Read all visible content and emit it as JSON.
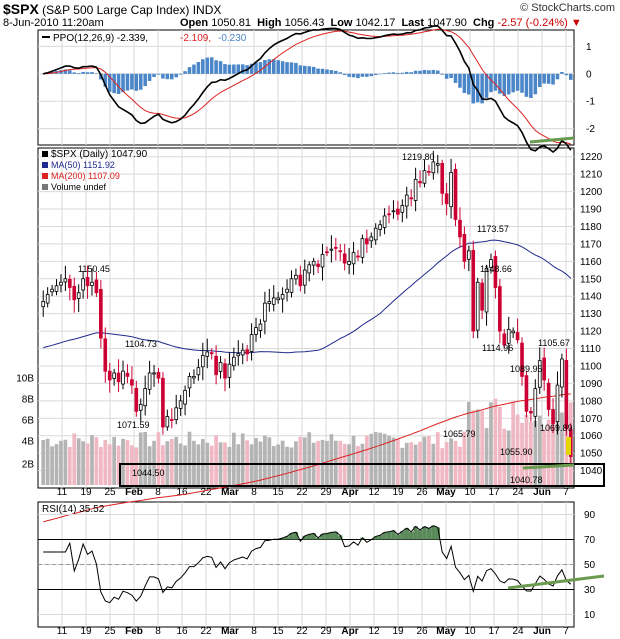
{
  "header": {
    "symbol": "$SPX",
    "name": "(S&P 500 Large Cap Index)",
    "exchange": "INDX",
    "credit": "© StockCharts.com",
    "datetime": "8-Jun-2010 11:20am",
    "open_label": "Open",
    "open": "1050.81",
    "high_label": "High",
    "high": "1056.43",
    "low_label": "Low",
    "low": "1042.17",
    "last_label": "Last",
    "last": "1047.90",
    "chg_label": "Chg",
    "chg": "-2.57 (-0.24%)",
    "chg_arrow": "▼"
  },
  "colors": {
    "up": "#000000",
    "down": "#cc0033",
    "ma50": "#1f2a8c",
    "ma200": "#dd2222",
    "ppo_hist": "#4a86c8",
    "vol_up": "#b4b4b4",
    "vol_down": "#f1b8c4",
    "rsi_fill": "#5a8a5a",
    "trend": "#6a9a50",
    "grid": "#d9d9d9"
  },
  "chart_data": [
    {
      "type": "line",
      "panel": "ppo",
      "legend": [
        {
          "label": "PPO(12,26,9)",
          "value": "-2.339"
        },
        {
          "label": "",
          "value": "-2.109"
        },
        {
          "label": "",
          "value": "-0.230"
        }
      ],
      "ylim": [
        -2.6,
        1.6
      ],
      "yticks": [
        1,
        0,
        -1,
        -2
      ],
      "yticklabels": [
        "1",
        "0",
        "-1",
        "-2"
      ]
    },
    {
      "type": "candlestick",
      "panel": "price",
      "legend": [
        {
          "label": "$SPX (Daily)",
          "value": "1047.90"
        },
        {
          "label": "MA(50)",
          "value": "1151.92"
        },
        {
          "label": "MA(200)",
          "value": "1107.09"
        },
        {
          "label": "Volume undef",
          "value": ""
        }
      ],
      "ylim": [
        1030,
        1225
      ],
      "yticks": [
        1040,
        1050,
        1060,
        1070,
        1080,
        1090,
        1100,
        1110,
        1120,
        1130,
        1140,
        1150,
        1160,
        1170,
        1180,
        1190,
        1200,
        1210,
        1220
      ],
      "yticklabels": [
        "1040",
        "1050",
        "1060",
        "1070",
        "1080",
        "1090",
        "1100",
        "1110",
        "1120",
        "1130",
        "1140",
        "1150",
        "1160",
        "1170",
        "1180",
        "1190",
        "1200",
        "1210",
        "1220"
      ],
      "volume_ticks": [
        "10B",
        "8B",
        "6B",
        "4B",
        "2B"
      ],
      "annotations": [
        {
          "text": "1150.45",
          "value": 1150.45
        },
        {
          "text": "1104.73",
          "value": 1104.73
        },
        {
          "text": "1071.59",
          "value": 1071.59
        },
        {
          "text": "1044.50",
          "value": 1044.5
        },
        {
          "text": "1219.80",
          "value": 1219.8
        },
        {
          "text": "1173.57",
          "value": 1173.57
        },
        {
          "text": "1148.66",
          "value": 1148.66
        },
        {
          "text": "1114.96",
          "value": 1114.96
        },
        {
          "text": "1065.79",
          "value": 1065.79
        },
        {
          "text": "1089.95",
          "value": 1089.95
        },
        {
          "text": "1055.90",
          "value": 1055.9
        },
        {
          "text": "1040.78",
          "value": 1040.78
        },
        {
          "text": "1069.89",
          "value": 1069.89
        },
        {
          "text": "1105.67",
          "value": 1105.67
        }
      ],
      "closes": [
        1137,
        1141,
        1144,
        1146,
        1148,
        1150,
        1145,
        1138,
        1142,
        1150,
        1146,
        1148,
        1142,
        1116,
        1097,
        1092,
        1096,
        1091,
        1097,
        1094,
        1089,
        1074,
        1078,
        1087,
        1096,
        1096,
        1093,
        1065,
        1071,
        1069,
        1076,
        1080,
        1086,
        1094,
        1094,
        1099,
        1106,
        1108,
        1107,
        1095,
        1102,
        1093,
        1101,
        1105,
        1107,
        1109,
        1107,
        1118,
        1122,
        1124,
        1136,
        1137,
        1139,
        1139,
        1141,
        1144,
        1150,
        1152,
        1146,
        1155,
        1158,
        1160,
        1157,
        1164,
        1165,
        1167,
        1168,
        1166,
        1159,
        1160,
        1165,
        1163,
        1173,
        1170,
        1174,
        1179,
        1181,
        1186,
        1187,
        1189,
        1187,
        1192,
        1198,
        1196,
        1207,
        1205,
        1212,
        1211,
        1217,
        1216,
        1199,
        1193,
        1211,
        1184,
        1174,
        1160,
        1166,
        1120,
        1148,
        1132,
        1156,
        1161,
        1145,
        1120,
        1112,
        1121,
        1120,
        1115,
        1094,
        1074,
        1073,
        1087,
        1103,
        1092,
        1075,
        1067,
        1089,
        1104,
        1064,
        1048
      ]
    },
    {
      "type": "line",
      "panel": "rsi",
      "legend": [
        {
          "label": "RSI(14)",
          "value": "35.52"
        }
      ],
      "ylim": [
        0,
        100
      ],
      "levels": [
        70,
        30
      ],
      "yticks": [
        90,
        70,
        50,
        30,
        10
      ],
      "yticklabels": [
        "90",
        "70",
        "50",
        "30",
        "10"
      ]
    },
    {
      "type": "axis",
      "panel": "dates",
      "labels": [
        "11",
        "19",
        "25",
        "Feb",
        "8",
        "16",
        "22",
        "Mar",
        "8",
        "15",
        "22",
        "29",
        "Apr",
        "12",
        "19",
        "26",
        "May",
        "10",
        "17",
        "24",
        "Jun",
        "7"
      ],
      "bold": [
        "Feb",
        "Mar",
        "Apr",
        "May",
        "Jun"
      ]
    }
  ]
}
